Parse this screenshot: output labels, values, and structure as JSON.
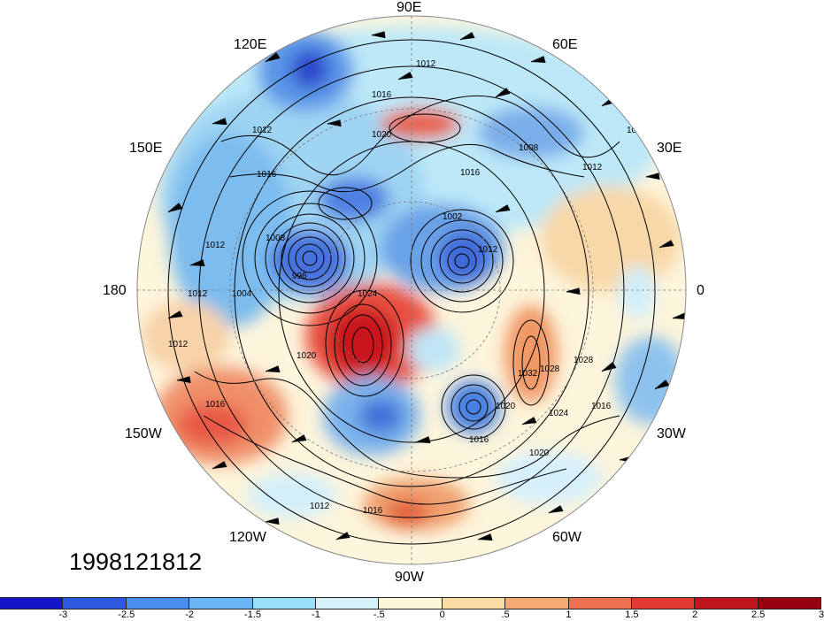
{
  "timestamp": "1998121812",
  "longitude_labels": {
    "n90e": "90E",
    "n120e": "120E",
    "n60e": "60E",
    "n150e": "150E",
    "n30e": "30E",
    "n180": "180",
    "n0": "0",
    "n150w": "150W",
    "n30w": "30W",
    "n120w": "120W",
    "n60w": "60W",
    "n90w": "90W"
  },
  "isobar_labels": [
    "1012",
    "1016",
    "1012",
    "1016",
    "1008",
    "1012",
    "1012",
    "1008",
    "1004",
    "996",
    "1024",
    "1002",
    "1012",
    "1028",
    "1032",
    "1028",
    "1024",
    "1020",
    "1016",
    "1020",
    "1016",
    "1012",
    "1016",
    "1012",
    "1016",
    "1020",
    "1008",
    "1012",
    "1020",
    "1016"
  ],
  "colorbar": {
    "colors": [
      "#1414c8",
      "#2d5ae0",
      "#4a8ef0",
      "#6ab6f5",
      "#9be0fa",
      "#d6f3fc",
      "#fdf6d8",
      "#fbdca6",
      "#f6aa73",
      "#ef7050",
      "#e23a30",
      "#c0141e",
      "#96000f"
    ],
    "tick_labels": [
      "-3",
      "-2.5",
      "-2",
      "-1.5",
      "-1",
      "-.5",
      "0",
      ".5",
      "1",
      "1.5",
      "2",
      "2.5",
      "3"
    ]
  }
}
